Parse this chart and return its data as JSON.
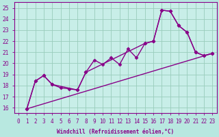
{
  "xlabel": "Windchill (Refroidissement éolien,°C)",
  "background_color": "#b8e8e0",
  "plot_bg_color": "#c8eee8",
  "grid_color": "#99ccbb",
  "line_color": "#880088",
  "xlim_min": -0.5,
  "xlim_max": 23.5,
  "ylim_min": 15.5,
  "ylim_max": 25.5,
  "yticks": [
    16,
    17,
    18,
    19,
    20,
    21,
    22,
    23,
    24,
    25
  ],
  "xticks": [
    0,
    1,
    2,
    3,
    4,
    5,
    6,
    7,
    8,
    9,
    10,
    11,
    12,
    13,
    14,
    15,
    16,
    17,
    18,
    19,
    20,
    21,
    22,
    23
  ],
  "series": [
    {
      "x": [
        1,
        2,
        3,
        4,
        5,
        6,
        7,
        8,
        9,
        10,
        11,
        12,
        13,
        14,
        15,
        16,
        17,
        18,
        19,
        20,
        21,
        22,
        23
      ],
      "y": [
        15.9,
        18.4,
        18.9,
        18.1,
        17.8,
        17.7,
        17.6,
        19.2,
        20.3,
        19.9,
        20.5,
        19.9,
        21.3,
        20.5,
        21.8,
        22.0,
        24.8,
        24.7,
        23.4,
        22.8,
        21.0,
        20.7,
        20.9
      ],
      "marker": "D",
      "markersize": 2.5,
      "linewidth": 1.0
    },
    {
      "x": [
        1,
        2,
        3,
        4,
        7,
        8,
        15,
        16,
        17,
        18,
        19,
        20,
        21,
        22,
        23
      ],
      "y": [
        15.9,
        18.4,
        18.9,
        18.1,
        17.6,
        19.2,
        21.8,
        22.0,
        24.8,
        24.7,
        23.4,
        22.8,
        21.0,
        20.7,
        20.9
      ],
      "marker": "D",
      "markersize": 2.5,
      "linewidth": 1.0
    },
    {
      "x": [
        1,
        23
      ],
      "y": [
        15.9,
        20.9
      ],
      "marker": null,
      "markersize": 0,
      "linewidth": 1.0
    }
  ]
}
